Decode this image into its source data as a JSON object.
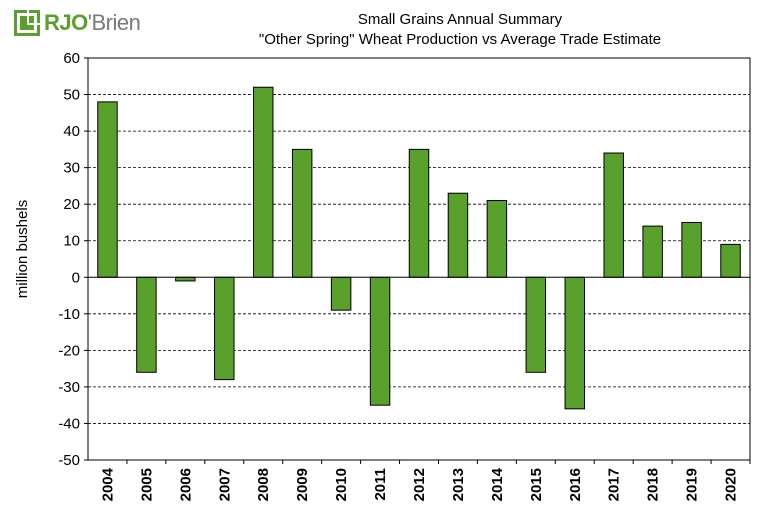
{
  "logo": {
    "rjo": "RJO",
    "apostrophe": "'",
    "brien": "Brien"
  },
  "chart_data": {
    "type": "bar",
    "title": "Small Grains Annual Summary",
    "subtitle": "\"Other Spring\" Wheat Production vs Average Trade Estimate",
    "xlabel": "",
    "ylabel": "million bushels",
    "ylim": [
      -50,
      60
    ],
    "yticks": [
      60,
      50,
      40,
      30,
      20,
      10,
      0,
      -10,
      -20,
      -30,
      -40,
      -50
    ],
    "grid": true,
    "bar_color": "#5aa02c",
    "categories": [
      "2004",
      "2005",
      "2006",
      "2007",
      "2008",
      "2009",
      "2010",
      "2011",
      "2012",
      "2013",
      "2014",
      "2015",
      "2016",
      "2017",
      "2018",
      "2019",
      "2020"
    ],
    "values": [
      48,
      -26,
      -1,
      -28,
      52,
      35,
      -9,
      -35,
      35,
      23,
      21,
      -26,
      -36,
      34,
      14,
      15,
      9
    ]
  }
}
